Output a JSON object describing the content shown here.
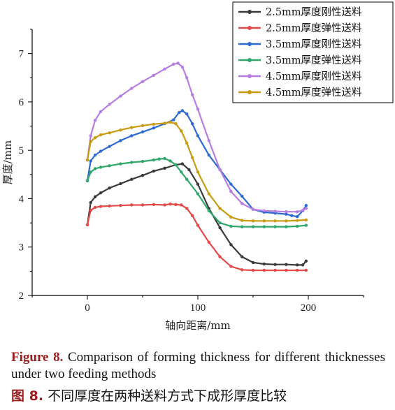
{
  "chart_data": {
    "type": "line",
    "xlabel": "轴向距离/mm",
    "ylabel": "厚度/mm",
    "xlim": [
      -50,
      250
    ],
    "ylim": [
      2,
      7.5
    ],
    "xticks": [
      0,
      100,
      200
    ],
    "yticks": [
      2,
      3,
      4,
      5,
      6,
      7
    ],
    "legend_position": "top-right",
    "grid": false,
    "series": [
      {
        "name": "2.5mm厚度刚性送料",
        "color": "#3a3a3a",
        "x": [
          0,
          3,
          7,
          12,
          20,
          30,
          40,
          50,
          60,
          70,
          80,
          86,
          92,
          100,
          110,
          120,
          130,
          140,
          150,
          160,
          170,
          180,
          190,
          195,
          198
        ],
        "y": [
          3.46,
          3.92,
          4.04,
          4.12,
          4.22,
          4.31,
          4.4,
          4.48,
          4.57,
          4.63,
          4.7,
          4.72,
          4.6,
          4.3,
          3.8,
          3.4,
          3.05,
          2.8,
          2.68,
          2.65,
          2.64,
          2.64,
          2.63,
          2.63,
          2.71
        ]
      },
      {
        "name": "2.5mm厚度弹性送料",
        "color": "#e34a4a",
        "x": [
          0,
          3,
          7,
          12,
          20,
          30,
          40,
          50,
          60,
          70,
          75,
          80,
          85,
          90,
          95,
          100,
          110,
          120,
          130,
          140,
          150,
          160,
          170,
          180,
          190,
          198
        ],
        "y": [
          3.46,
          3.76,
          3.82,
          3.84,
          3.85,
          3.86,
          3.87,
          3.87,
          3.88,
          3.87,
          3.89,
          3.88,
          3.87,
          3.8,
          3.65,
          3.45,
          3.1,
          2.8,
          2.6,
          2.53,
          2.52,
          2.52,
          2.52,
          2.52,
          2.52,
          2.52
        ]
      },
      {
        "name": "3.5mm厚度刚性送料",
        "color": "#2e6bd1",
        "x": [
          0,
          3,
          7,
          12,
          20,
          30,
          40,
          50,
          60,
          70,
          78,
          83,
          86,
          90,
          95,
          100,
          110,
          120,
          130,
          140,
          150,
          160,
          170,
          180,
          185,
          190,
          195,
          198
        ],
        "y": [
          4.37,
          4.78,
          4.9,
          4.98,
          5.08,
          5.2,
          5.3,
          5.38,
          5.46,
          5.55,
          5.63,
          5.78,
          5.82,
          5.75,
          5.55,
          5.3,
          4.9,
          4.6,
          4.3,
          4.05,
          3.78,
          3.72,
          3.7,
          3.68,
          3.65,
          3.63,
          3.75,
          3.86
        ]
      },
      {
        "name": "3.5mm厚度弹性送料",
        "color": "#2fa86a",
        "x": [
          0,
          3,
          7,
          12,
          20,
          30,
          40,
          50,
          60,
          65,
          70,
          75,
          80,
          85,
          90,
          100,
          110,
          120,
          130,
          140,
          150,
          160,
          170,
          180,
          190,
          198
        ],
        "y": [
          4.37,
          4.55,
          4.62,
          4.65,
          4.68,
          4.72,
          4.75,
          4.77,
          4.8,
          4.82,
          4.83,
          4.78,
          4.7,
          4.55,
          4.4,
          4.1,
          3.75,
          3.5,
          3.43,
          3.42,
          3.42,
          3.42,
          3.42,
          3.42,
          3.43,
          3.45
        ]
      },
      {
        "name": "4.5mm厚度刚性送料",
        "color": "#b77de3",
        "x": [
          0,
          3,
          7,
          12,
          20,
          30,
          40,
          50,
          60,
          70,
          78,
          82,
          86,
          90,
          95,
          100,
          110,
          120,
          130,
          140,
          150,
          160,
          170,
          180,
          190,
          195,
          198
        ],
        "y": [
          4.8,
          5.3,
          5.62,
          5.8,
          5.95,
          6.12,
          6.28,
          6.42,
          6.55,
          6.68,
          6.78,
          6.8,
          6.72,
          6.5,
          6.15,
          5.85,
          5.2,
          4.6,
          4.15,
          3.9,
          3.78,
          3.75,
          3.74,
          3.73,
          3.73,
          3.76,
          3.8
        ]
      },
      {
        "name": "4.5mm厚度弹性送料",
        "color": "#c89b12",
        "x": [
          0,
          3,
          7,
          12,
          20,
          30,
          40,
          50,
          60,
          70,
          75,
          80,
          85,
          90,
          95,
          100,
          110,
          120,
          130,
          140,
          150,
          160,
          170,
          180,
          190,
          198
        ],
        "y": [
          4.8,
          5.18,
          5.26,
          5.32,
          5.36,
          5.42,
          5.47,
          5.51,
          5.54,
          5.56,
          5.58,
          5.55,
          5.4,
          5.15,
          4.85,
          4.55,
          4.1,
          3.8,
          3.62,
          3.55,
          3.54,
          3.54,
          3.54,
          3.54,
          3.55,
          3.56
        ]
      }
    ]
  },
  "caption_en": {
    "label": "Figure 8.",
    "text": " Comparison of forming thickness for different thicknesses under two feeding methods"
  },
  "caption_zh": {
    "label": "图 8.",
    "text": " 不同厚度在两种送料方式下成形厚度比较"
  }
}
